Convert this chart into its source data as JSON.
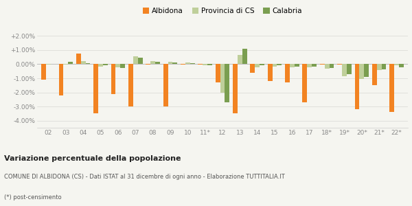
{
  "categories": [
    "02",
    "03",
    "04",
    "05",
    "06",
    "07",
    "08",
    "09",
    "10",
    "11*",
    "12",
    "13",
    "14",
    "15",
    "16",
    "17",
    "18*",
    "19*",
    "20*",
    "21*",
    "22*"
  ],
  "albidona": [
    -1.1,
    -2.2,
    0.75,
    -3.5,
    -2.1,
    -3.0,
    -0.05,
    -3.0,
    -0.05,
    -0.05,
    -1.3,
    -3.5,
    -0.6,
    -1.2,
    -1.3,
    -2.7,
    -0.05,
    -0.05,
    -3.2,
    -1.5,
    -3.4
  ],
  "provincia_cs": [
    -0.05,
    -0.05,
    0.2,
    -0.15,
    -0.2,
    0.55,
    0.2,
    0.15,
    0.1,
    -0.1,
    -2.0,
    0.65,
    -0.2,
    -0.15,
    -0.2,
    -0.2,
    -0.3,
    -0.85,
    -1.05,
    -0.4,
    -0.1
  ],
  "calabria": [
    0.0,
    0.15,
    0.05,
    -0.1,
    -0.25,
    0.45,
    0.15,
    0.1,
    0.05,
    -0.1,
    -2.7,
    1.1,
    -0.1,
    -0.1,
    -0.15,
    -0.15,
    -0.25,
    -0.7,
    -0.9,
    -0.35,
    -0.2
  ],
  "color_albidona": "#f28322",
  "color_provincia": "#bfcf9a",
  "color_calabria": "#7a9e50",
  "ylim_min": -4.5,
  "ylim_max": 2.5,
  "yticks": [
    -4.0,
    -3.0,
    -2.0,
    -1.0,
    0.0,
    1.0,
    2.0
  ],
  "title": "Variazione percentuale della popolazione",
  "subtitle": "COMUNE DI ALBIDONA (CS) - Dati ISTAT al 31 dicembre di ogni anno - Elaborazione TUTTITALIA.IT",
  "footnote": "(*) post-censimento",
  "legend_labels": [
    "Albidona",
    "Provincia di CS",
    "Calabria"
  ],
  "bg_color": "#f5f5f0"
}
